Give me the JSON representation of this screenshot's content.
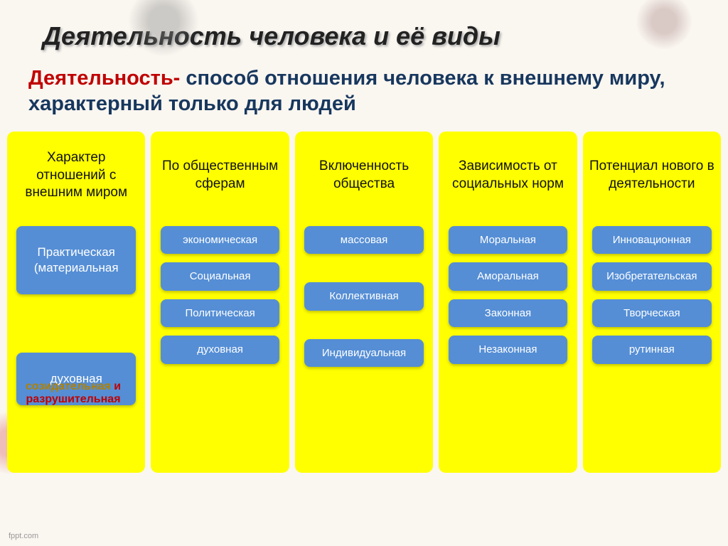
{
  "title": "Деятельность человека и её виды",
  "subtitle_term": "Деятельность-",
  "subtitle_def": " способ отношения человека к внешнему миру, характерный только для людей",
  "side_note_a": "созидательная",
  "side_note_b": " и ",
  "side_note_c": "разрушительная",
  "footer": "fppt.com",
  "item_color": "#558ed5",
  "header_bg": "#ffff00",
  "columns": [
    {
      "header": "Характер отношений с внешним миром",
      "items": [
        "Практическая (материальная",
        "духовная"
      ],
      "big": true
    },
    {
      "header": "По общественным сферам",
      "items": [
        "экономическая",
        "Социальная",
        "Политическая",
        "духовная"
      ],
      "big": false
    },
    {
      "header": "Включенность общества",
      "items": [
        "массовая",
        "Коллективная",
        "Индивидуальная"
      ],
      "big": false
    },
    {
      "header": "Зависимость от социальных норм",
      "items": [
        "Моральная",
        "Аморальная",
        "Законная",
        "Незаконная"
      ],
      "big": false
    },
    {
      "header": "Потенциал нового в деятельности",
      "items": [
        "Инновационная",
        "Изобретательская",
        "Творческая",
        "рутинная"
      ],
      "big": false
    }
  ]
}
